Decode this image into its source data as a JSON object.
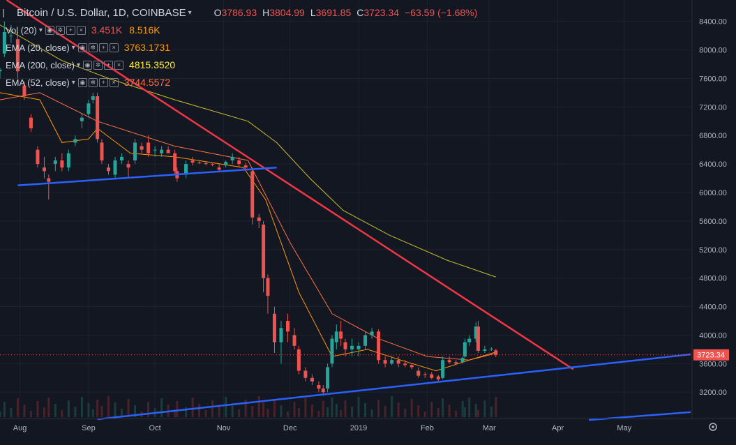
{
  "header": {
    "symbol": "Bitcoin / U.S. Dollar, 1D, COINBASE",
    "open_key": "O",
    "open": "3786.93",
    "high_key": "H",
    "high": "3804.99",
    "low_key": "L",
    "low": "3691.85",
    "close_key": "C",
    "close": "3723.34",
    "change": "−63.59 (−1.68%)"
  },
  "indicators": [
    {
      "label": "Vol (20)",
      "values": [
        "3.451K",
        "8.516K"
      ],
      "colors": [
        "#ef5350",
        "#ff9800"
      ]
    },
    {
      "label": "EMA (20, close)",
      "values": [
        "3763.1731"
      ],
      "colors": [
        "#ff9800"
      ]
    },
    {
      "label": "EMA (200, close)",
      "values": [
        "4815.3520"
      ],
      "colors": [
        "#ffeb3b"
      ]
    },
    {
      "label": "EMA (52, close)",
      "values": [
        "3744.5572"
      ],
      "colors": [
        "#ff7043"
      ]
    }
  ],
  "price_axis": {
    "ticks": [
      "8400.00",
      "8000.00",
      "7600.00",
      "7200.00",
      "6800.00",
      "6400.00",
      "6000.00",
      "5600.00",
      "5200.00",
      "4800.00",
      "4400.00",
      "4000.00",
      "3600.00",
      "3200.00"
    ],
    "last_price": "3723.34"
  },
  "time_axis": {
    "labels": [
      "Aug",
      "Sep",
      "Oct",
      "Nov",
      "Dec",
      "2019",
      "Feb",
      "Mar",
      "Apr",
      "May"
    ]
  },
  "colors": {
    "background": "#131722",
    "up": "#26a69a",
    "down": "#ef5350",
    "ema20": "#ff9800",
    "ema52": "#ff7043",
    "ema200": "#c8c02a",
    "trend_red": "#f23645",
    "trend_blue": "#2962ff"
  },
  "icons": [
    "eye-icon",
    "settings-icon",
    "plus-icon",
    "close-icon",
    "chevron-down-icon",
    "gear-icon"
  ],
  "chart_data": {
    "type": "candlestick",
    "title": "Bitcoin / U.S. Dollar, 1D, COINBASE",
    "x_range": [
      "2018-07-23",
      "2019-05-31"
    ],
    "ylim": [
      2850,
      8700
    ],
    "candles": [
      {
        "date": "2018-07-23",
        "o": 7700,
        "h": 7750,
        "l": 7600,
        "c": 7720
      },
      {
        "date": "2018-07-25",
        "o": 7950,
        "h": 8400,
        "l": 7900,
        "c": 8250
      },
      {
        "date": "2018-07-28",
        "o": 8200,
        "h": 8350,
        "l": 8100,
        "c": 8200
      },
      {
        "date": "2018-07-31",
        "o": 8150,
        "h": 8250,
        "l": 7600,
        "c": 7700
      },
      {
        "date": "2018-08-03",
        "o": 7500,
        "h": 7550,
        "l": 7300,
        "c": 7350
      },
      {
        "date": "2018-08-06",
        "o": 7050,
        "h": 7100,
        "l": 6850,
        "c": 6900
      },
      {
        "date": "2018-08-09",
        "o": 6600,
        "h": 6650,
        "l": 6350,
        "c": 6400
      },
      {
        "date": "2018-08-12",
        "o": 6350,
        "h": 6500,
        "l": 6200,
        "c": 6300
      },
      {
        "date": "2018-08-14",
        "o": 6200,
        "h": 6250,
        "l": 5900,
        "c": 6150
      },
      {
        "date": "2018-08-17",
        "o": 6400,
        "h": 6500,
        "l": 6300,
        "c": 6450
      },
      {
        "date": "2018-08-20",
        "o": 6450,
        "h": 6550,
        "l": 6300,
        "c": 6350
      },
      {
        "date": "2018-08-23",
        "o": 6350,
        "h": 6600,
        "l": 6300,
        "c": 6550
      },
      {
        "date": "2018-08-26",
        "o": 6700,
        "h": 6800,
        "l": 6650,
        "c": 6750
      },
      {
        "date": "2018-08-29",
        "o": 7000,
        "h": 7100,
        "l": 6900,
        "c": 7050
      },
      {
        "date": "2018-09-01",
        "o": 7100,
        "h": 7300,
        "l": 7050,
        "c": 7250
      },
      {
        "date": "2018-09-03",
        "o": 7300,
        "h": 7400,
        "l": 7250,
        "c": 7350
      },
      {
        "date": "2018-09-05",
        "o": 7350,
        "h": 7400,
        "l": 6700,
        "c": 6750
      },
      {
        "date": "2018-09-07",
        "o": 6700,
        "h": 6750,
        "l": 6400,
        "c": 6450
      },
      {
        "date": "2018-09-10",
        "o": 6350,
        "h": 6400,
        "l": 6250,
        "c": 6300
      },
      {
        "date": "2018-09-13",
        "o": 6250,
        "h": 6500,
        "l": 6200,
        "c": 6450
      },
      {
        "date": "2018-09-16",
        "o": 6450,
        "h": 6550,
        "l": 6400,
        "c": 6500
      },
      {
        "date": "2018-09-19",
        "o": 6400,
        "h": 6450,
        "l": 6200,
        "c": 6350
      },
      {
        "date": "2018-09-22",
        "o": 6450,
        "h": 6750,
        "l": 6400,
        "c": 6700
      },
      {
        "date": "2018-09-25",
        "o": 6650,
        "h": 6700,
        "l": 6550,
        "c": 6600
      },
      {
        "date": "2018-09-28",
        "o": 6700,
        "h": 6800,
        "l": 6500,
        "c": 6550
      },
      {
        "date": "2018-10-01",
        "o": 6600,
        "h": 6650,
        "l": 6500,
        "c": 6600
      },
      {
        "date": "2018-10-04",
        "o": 6550,
        "h": 6650,
        "l": 6500,
        "c": 6600
      },
      {
        "date": "2018-10-07",
        "o": 6600,
        "h": 6650,
        "l": 6550,
        "c": 6550
      },
      {
        "date": "2018-10-10",
        "o": 6550,
        "h": 6600,
        "l": 6250,
        "c": 6300
      },
      {
        "date": "2018-10-11",
        "o": 6300,
        "h": 6350,
        "l": 6150,
        "c": 6200
      },
      {
        "date": "2018-10-15",
        "o": 6250,
        "h": 6450,
        "l": 6200,
        "c": 6400
      },
      {
        "date": "2018-10-18",
        "o": 6450,
        "h": 6500,
        "l": 6380,
        "c": 6420
      },
      {
        "date": "2018-10-21",
        "o": 6420,
        "h": 6450,
        "l": 6400,
        "c": 6410
      },
      {
        "date": "2018-10-24",
        "o": 6410,
        "h": 6430,
        "l": 6380,
        "c": 6400
      },
      {
        "date": "2018-10-27",
        "o": 6400,
        "h": 6420,
        "l": 6370,
        "c": 6390
      },
      {
        "date": "2018-10-30",
        "o": 6350,
        "h": 6400,
        "l": 6300,
        "c": 6320
      },
      {
        "date": "2018-11-02",
        "o": 6380,
        "h": 6450,
        "l": 6350,
        "c": 6430
      },
      {
        "date": "2018-11-05",
        "o": 6450,
        "h": 6550,
        "l": 6400,
        "c": 6500
      },
      {
        "date": "2018-11-08",
        "o": 6450,
        "h": 6500,
        "l": 6350,
        "c": 6400
      },
      {
        "date": "2018-11-11",
        "o": 6380,
        "h": 6420,
        "l": 6300,
        "c": 6350
      },
      {
        "date": "2018-11-14",
        "o": 6300,
        "h": 6350,
        "l": 5550,
        "c": 5650
      },
      {
        "date": "2018-11-17",
        "o": 5650,
        "h": 5700,
        "l": 5500,
        "c": 5600
      },
      {
        "date": "2018-11-19",
        "o": 5550,
        "h": 5600,
        "l": 4600,
        "c": 4800
      },
      {
        "date": "2018-11-21",
        "o": 4800,
        "h": 4850,
        "l": 4300,
        "c": 4550
      },
      {
        "date": "2018-11-24",
        "o": 4300,
        "h": 4400,
        "l": 3750,
        "c": 3900
      },
      {
        "date": "2018-11-27",
        "o": 3900,
        "h": 4200,
        "l": 3600,
        "c": 4100
      },
      {
        "date": "2018-11-30",
        "o": 4200,
        "h": 4300,
        "l": 3900,
        "c": 4050
      },
      {
        "date": "2018-12-03",
        "o": 4000,
        "h": 4100,
        "l": 3800,
        "c": 3850
      },
      {
        "date": "2018-12-05",
        "o": 3800,
        "h": 3850,
        "l": 3450,
        "c": 3500
      },
      {
        "date": "2018-12-08",
        "o": 3500,
        "h": 3550,
        "l": 3350,
        "c": 3400
      },
      {
        "date": "2018-12-11",
        "o": 3400,
        "h": 3450,
        "l": 3300,
        "c": 3350
      },
      {
        "date": "2018-12-14",
        "o": 3300,
        "h": 3350,
        "l": 3200,
        "c": 3250
      },
      {
        "date": "2018-12-16",
        "o": 3250,
        "h": 3300,
        "l": 3150,
        "c": 3200
      },
      {
        "date": "2018-12-18",
        "o": 3250,
        "h": 3600,
        "l": 3200,
        "c": 3550
      },
      {
        "date": "2018-12-20",
        "o": 3600,
        "h": 4000,
        "l": 3550,
        "c": 3950
      },
      {
        "date": "2018-12-22",
        "o": 3900,
        "h": 4150,
        "l": 3800,
        "c": 4050
      },
      {
        "date": "2018-12-24",
        "o": 4050,
        "h": 4200,
        "l": 3850,
        "c": 3950
      },
      {
        "date": "2018-12-26",
        "o": 3900,
        "h": 3950,
        "l": 3700,
        "c": 3800
      },
      {
        "date": "2018-12-29",
        "o": 3800,
        "h": 3950,
        "l": 3700,
        "c": 3850
      },
      {
        "date": "2019-01-01",
        "o": 3800,
        "h": 3900,
        "l": 3700,
        "c": 3850
      },
      {
        "date": "2019-01-04",
        "o": 3850,
        "h": 4050,
        "l": 3800,
        "c": 4000
      },
      {
        "date": "2019-01-07",
        "o": 4000,
        "h": 4100,
        "l": 3950,
        "c": 4050
      },
      {
        "date": "2019-01-10",
        "o": 4050,
        "h": 4080,
        "l": 3600,
        "c": 3650
      },
      {
        "date": "2019-01-13",
        "o": 3650,
        "h": 3700,
        "l": 3550,
        "c": 3600
      },
      {
        "date": "2019-01-16",
        "o": 3600,
        "h": 3700,
        "l": 3580,
        "c": 3650
      },
      {
        "date": "2019-01-19",
        "o": 3650,
        "h": 3700,
        "l": 3550,
        "c": 3600
      },
      {
        "date": "2019-01-22",
        "o": 3600,
        "h": 3650,
        "l": 3550,
        "c": 3580
      },
      {
        "date": "2019-01-25",
        "o": 3580,
        "h": 3600,
        "l": 3520,
        "c": 3550
      },
      {
        "date": "2019-01-28",
        "o": 3500,
        "h": 3550,
        "l": 3400,
        "c": 3430
      },
      {
        "date": "2019-01-31",
        "o": 3450,
        "h": 3480,
        "l": 3400,
        "c": 3440
      },
      {
        "date": "2019-02-03",
        "o": 3450,
        "h": 3480,
        "l": 3380,
        "c": 3400
      },
      {
        "date": "2019-02-06",
        "o": 3420,
        "h": 3440,
        "l": 3350,
        "c": 3380
      },
      {
        "date": "2019-02-08",
        "o": 3400,
        "h": 3700,
        "l": 3380,
        "c": 3650
      },
      {
        "date": "2019-02-11",
        "o": 3650,
        "h": 3700,
        "l": 3600,
        "c": 3620
      },
      {
        "date": "2019-02-14",
        "o": 3620,
        "h": 3650,
        "l": 3580,
        "c": 3600
      },
      {
        "date": "2019-02-17",
        "o": 3620,
        "h": 3700,
        "l": 3600,
        "c": 3680
      },
      {
        "date": "2019-02-18",
        "o": 3700,
        "h": 3950,
        "l": 3680,
        "c": 3900
      },
      {
        "date": "2019-02-20",
        "o": 3900,
        "h": 4000,
        "l": 3850,
        "c": 3950
      },
      {
        "date": "2019-02-23",
        "o": 3950,
        "h": 4180,
        "l": 3900,
        "c": 4120
      },
      {
        "date": "2019-02-24",
        "o": 4120,
        "h": 4200,
        "l": 3750,
        "c": 3780
      },
      {
        "date": "2019-02-27",
        "o": 3780,
        "h": 3850,
        "l": 3750,
        "c": 3800
      },
      {
        "date": "2019-03-02",
        "o": 3800,
        "h": 3830,
        "l": 3780,
        "c": 3810
      },
      {
        "date": "2019-03-04",
        "o": 3786.93,
        "h": 3804.99,
        "l": 3691.85,
        "c": 3723.34
      }
    ],
    "ema20": [
      {
        "date": "2018-07-23",
        "v": 7400
      },
      {
        "date": "2018-08-10",
        "v": 7300
      },
      {
        "date": "2018-08-20",
        "v": 6700
      },
      {
        "date": "2018-09-01",
        "v": 6750
      },
      {
        "date": "2018-09-05",
        "v": 6900
      },
      {
        "date": "2018-09-20",
        "v": 6550
      },
      {
        "date": "2018-10-10",
        "v": 6500
      },
      {
        "date": "2018-11-10",
        "v": 6350
      },
      {
        "date": "2018-11-20",
        "v": 5900
      },
      {
        "date": "2018-12-05",
        "v": 4600
      },
      {
        "date": "2018-12-20",
        "v": 3700
      },
      {
        "date": "2019-01-05",
        "v": 3800
      },
      {
        "date": "2019-01-20",
        "v": 3650
      },
      {
        "date": "2019-02-05",
        "v": 3500
      },
      {
        "date": "2019-02-20",
        "v": 3650
      },
      {
        "date": "2019-03-04",
        "v": 3763
      }
    ],
    "ema52": [
      {
        "date": "2018-07-23",
        "v": 7300
      },
      {
        "date": "2018-08-10",
        "v": 7400
      },
      {
        "date": "2018-09-05",
        "v": 7000
      },
      {
        "date": "2018-10-10",
        "v": 6650
      },
      {
        "date": "2018-11-12",
        "v": 6450
      },
      {
        "date": "2018-12-01",
        "v": 5300
      },
      {
        "date": "2018-12-20",
        "v": 4300
      },
      {
        "date": "2019-01-10",
        "v": 3950
      },
      {
        "date": "2019-02-01",
        "v": 3700
      },
      {
        "date": "2019-02-20",
        "v": 3650
      },
      {
        "date": "2019-03-04",
        "v": 3745
      }
    ],
    "ema200": [
      {
        "date": "2018-07-23",
        "v": 8350
      },
      {
        "date": "2018-08-20",
        "v": 7850
      },
      {
        "date": "2018-09-10",
        "v": 7600
      },
      {
        "date": "2018-10-10",
        "v": 7300
      },
      {
        "date": "2018-11-12",
        "v": 7000
      },
      {
        "date": "2018-11-25",
        "v": 6700
      },
      {
        "date": "2018-12-10",
        "v": 6200
      },
      {
        "date": "2018-12-25",
        "v": 5750
      },
      {
        "date": "2019-01-15",
        "v": 5400
      },
      {
        "date": "2019-02-10",
        "v": 5050
      },
      {
        "date": "2019-03-04",
        "v": 4815
      }
    ],
    "trendlines": [
      {
        "color": "red",
        "from": {
          "date": "2018-07-26",
          "v": 8700
        },
        "to": {
          "date": "2019-04-08",
          "v": 3520
        }
      },
      {
        "color": "blue",
        "from": {
          "date": "2018-07-31",
          "v": 6100
        },
        "to": {
          "date": "2018-11-25",
          "v": 6350
        }
      },
      {
        "color": "blue",
        "from": {
          "date": "2018-09-05",
          "v": 2820
        },
        "to": {
          "date": "2019-05-31",
          "v": 3730
        }
      },
      {
        "color": "blue",
        "from": {
          "date": "2019-04-15",
          "v": 2810
        },
        "to": {
          "date": "2019-05-31",
          "v": 2920
        }
      }
    ],
    "time_ticks": [
      {
        "label": "Aug",
        "date": "2018-08-01"
      },
      {
        "label": "Sep",
        "date": "2018-09-01"
      },
      {
        "label": "Oct",
        "date": "2018-10-01"
      },
      {
        "label": "Nov",
        "date": "2018-11-01"
      },
      {
        "label": "Dec",
        "date": "2018-12-01"
      },
      {
        "label": "2019",
        "date": "2019-01-01"
      },
      {
        "label": "Feb",
        "date": "2019-02-01"
      },
      {
        "label": "Mar",
        "date": "2019-03-01"
      },
      {
        "label": "Apr",
        "date": "2019-04-01"
      },
      {
        "label": "May",
        "date": "2019-05-01"
      }
    ]
  }
}
